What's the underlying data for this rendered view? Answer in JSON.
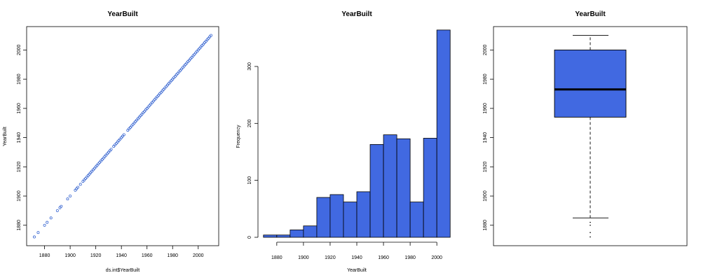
{
  "colors": {
    "fill": "#4169E1",
    "point": "#2255cc",
    "stroke": "#000000"
  },
  "chart_data": [
    {
      "type": "scatter",
      "title": "YearBuilt",
      "xlabel": "ds.int$YearBuilt",
      "ylabel": "YearBuilt",
      "xlim": [
        1866,
        2016
      ],
      "ylim": [
        1866,
        2016
      ],
      "xticks": [
        "1880",
        "1900",
        "1920",
        "1940",
        "1960",
        "1980",
        "2000"
      ],
      "yticks": [
        "1880",
        "1900",
        "1920",
        "1940",
        "1960",
        "1980",
        "2000"
      ],
      "points": [
        1872,
        1875,
        1880,
        1882,
        1885,
        1890,
        1892,
        1893,
        1898,
        1900,
        1904,
        1905,
        1906,
        1908,
        1910,
        1911,
        1912,
        1913,
        1914,
        1915,
        1916,
        1917,
        1918,
        1919,
        1920,
        1921,
        1922,
        1923,
        1924,
        1925,
        1926,
        1927,
        1928,
        1929,
        1930,
        1931,
        1932,
        1934,
        1935,
        1936,
        1937,
        1938,
        1939,
        1940,
        1941,
        1942,
        1945,
        1946,
        1947,
        1948,
        1949,
        1950,
        1951,
        1952,
        1953,
        1954,
        1955,
        1956,
        1957,
        1958,
        1959,
        1960,
        1961,
        1962,
        1963,
        1964,
        1965,
        1966,
        1967,
        1968,
        1969,
        1970,
        1971,
        1972,
        1973,
        1974,
        1975,
        1976,
        1977,
        1978,
        1979,
        1980,
        1981,
        1982,
        1983,
        1984,
        1985,
        1986,
        1987,
        1988,
        1989,
        1990,
        1991,
        1992,
        1993,
        1994,
        1995,
        1996,
        1997,
        1998,
        1999,
        2000,
        2001,
        2002,
        2003,
        2004,
        2005,
        2006,
        2007,
        2008,
        2009,
        2010
      ]
    },
    {
      "type": "bar",
      "title": "YearBuilt",
      "xlabel": "YearBuilt",
      "ylabel": "Frequency",
      "xlim": [
        1868,
        2012
      ],
      "ylim": [
        0,
        370
      ],
      "xticks": [
        "1880",
        "1900",
        "1920",
        "1940",
        "1960",
        "1980",
        "2000"
      ],
      "yticks": [
        "0",
        "100",
        "200",
        "300"
      ],
      "bin_edges": [
        1870,
        1880,
        1890,
        1900,
        1910,
        1920,
        1930,
        1940,
        1950,
        1960,
        1970,
        1980,
        1990,
        2000,
        2010
      ],
      "values": [
        4,
        4,
        13,
        20,
        70,
        75,
        62,
        80,
        163,
        180,
        173,
        62,
        174,
        364
      ]
    },
    {
      "type": "box",
      "title": "YearBuilt",
      "xlabel": "",
      "ylabel": "",
      "ylim": [
        1866,
        2016
      ],
      "yticks": [
        "1880",
        "1900",
        "1920",
        "1940",
        "1960",
        "1980",
        "2000"
      ],
      "min": 1885,
      "q1": 1954,
      "median": 1973,
      "q3": 2000,
      "max": 2010,
      "outliers": [
        1872,
        1875,
        1880,
        1882
      ]
    }
  ]
}
